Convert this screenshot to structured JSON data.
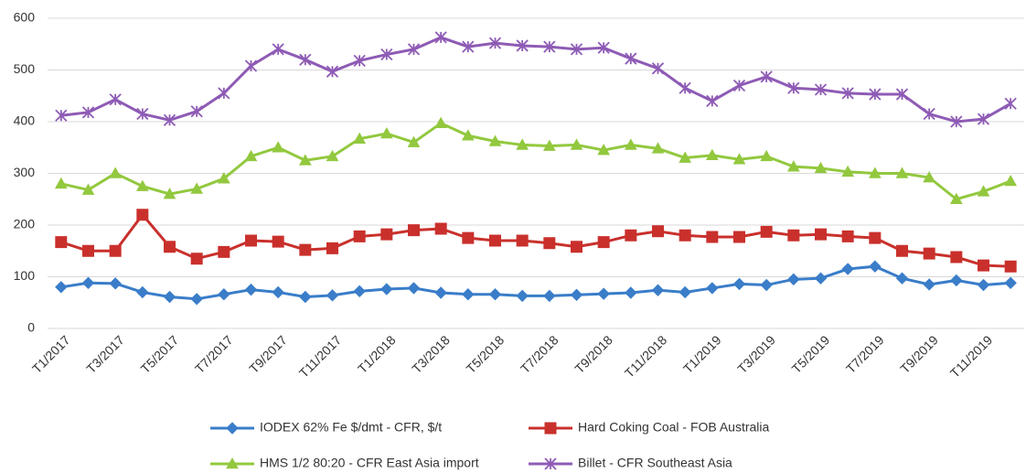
{
  "chart_data": {
    "type": "line",
    "categories": [
      "T1/2017",
      null,
      "T3/2017",
      null,
      "T5/2017",
      null,
      "T7/2017",
      null,
      "T9/2017",
      null,
      "T11/2017",
      null,
      "T1/2018",
      null,
      "T3/2018",
      null,
      "T5/2018",
      null,
      "T7/2018",
      null,
      "T9/2018",
      null,
      "T11/2018",
      null,
      "T1/2019",
      null,
      "T3/2019",
      null,
      "T5/2019",
      null,
      "T7/2019",
      null,
      "T9/2019",
      null,
      "T11/2019",
      null
    ],
    "ylim": [
      0,
      600
    ],
    "yticks": [
      0,
      100,
      200,
      300,
      400,
      500,
      600
    ],
    "grid": true,
    "legend": "bottom",
    "series": [
      {
        "name": "IODEX 62% Fe $/dmt - CFR, $/t",
        "color": "#3a7dc9",
        "marker": "diamond",
        "values": [
          80,
          88,
          87,
          70,
          61,
          57,
          66,
          75,
          70,
          61,
          64,
          72,
          76,
          78,
          69,
          66,
          66,
          63,
          63,
          65,
          67,
          69,
          74,
          70,
          78,
          86,
          84,
          95,
          97,
          115,
          120,
          97,
          85,
          93,
          84,
          88
        ]
      },
      {
        "name": "Hard Coking Coal - FOB Australia",
        "color": "#c9302c",
        "marker": "square",
        "values": [
          167,
          150,
          150,
          220,
          158,
          135,
          148,
          170,
          168,
          152,
          155,
          178,
          182,
          190,
          193,
          175,
          170,
          170,
          165,
          158,
          167,
          180,
          188,
          180,
          177,
          177,
          187,
          180,
          182,
          178,
          175,
          150,
          145,
          138,
          122,
          120
        ]
      },
      {
        "name": "HMS 1/2 80:20 - CFR East Asia import",
        "color": "#92c83e",
        "marker": "triangle",
        "values": [
          280,
          268,
          300,
          275,
          260,
          270,
          290,
          333,
          350,
          325,
          333,
          367,
          377,
          360,
          397,
          373,
          362,
          355,
          353,
          355,
          345,
          355,
          348,
          330,
          335,
          327,
          333,
          313,
          310,
          303,
          300,
          300,
          292,
          250,
          265,
          285
        ]
      },
      {
        "name": "Billet - CFR Southeast Asia",
        "color": "#8e5bb5",
        "marker": "star",
        "values": [
          412,
          418,
          443,
          415,
          403,
          420,
          455,
          508,
          540,
          520,
          497,
          518,
          530,
          540,
          563,
          545,
          552,
          547,
          545,
          540,
          543,
          522,
          503,
          465,
          440,
          470,
          487,
          465,
          462,
          455,
          453,
          453,
          415,
          400,
          405,
          435
        ]
      }
    ]
  }
}
